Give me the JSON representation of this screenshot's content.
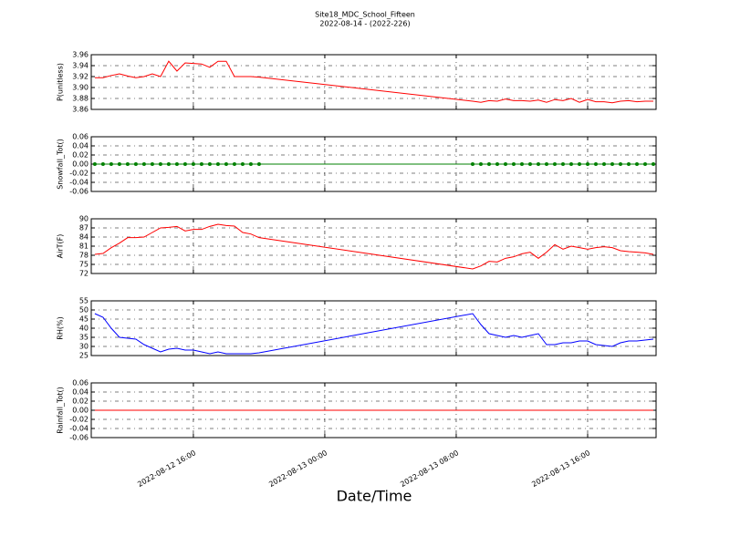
{
  "chart_data": [
    {
      "type": "line",
      "title": "Site18_MDC_School_Fifteen",
      "subtitle": "2022-08-14 - (2022-226)",
      "ylabel": "P(unitless)",
      "color": "#ff0000",
      "marker": false,
      "grid": true,
      "x": [
        "2022-08-12 10:00",
        "2022-08-12 10:30",
        "2022-08-12 11:00",
        "2022-08-12 11:30",
        "2022-08-12 12:00",
        "2022-08-12 12:30",
        "2022-08-12 13:00",
        "2022-08-12 13:30",
        "2022-08-12 14:00",
        "2022-08-12 14:30",
        "2022-08-12 15:00",
        "2022-08-12 15:30",
        "2022-08-12 16:00",
        "2022-08-12 16:30",
        "2022-08-12 17:00",
        "2022-08-12 17:30",
        "2022-08-12 18:00",
        "2022-08-12 18:30",
        "2022-08-12 19:00",
        "2022-08-12 19:30",
        "2022-08-12 20:00",
        "2022-08-13 09:00",
        "2022-08-13 09:30",
        "2022-08-13 10:00",
        "2022-08-13 10:30",
        "2022-08-13 11:00",
        "2022-08-13 11:30",
        "2022-08-13 12:00",
        "2022-08-13 12:30",
        "2022-08-13 13:00",
        "2022-08-13 13:30",
        "2022-08-13 14:00",
        "2022-08-13 14:30",
        "2022-08-13 15:00",
        "2022-08-13 15:30",
        "2022-08-13 16:00",
        "2022-08-13 16:30",
        "2022-08-13 17:00",
        "2022-08-13 17:30",
        "2022-08-13 18:00",
        "2022-08-13 18:30",
        "2022-08-13 19:00",
        "2022-08-13 19:30",
        "2022-08-13 20:00"
      ],
      "values": [
        3.918,
        3.918,
        3.922,
        3.925,
        3.921,
        3.918,
        3.92,
        3.925,
        3.92,
        3.948,
        3.93,
        3.945,
        3.944,
        3.943,
        3.937,
        3.948,
        3.948,
        3.92,
        3.92,
        3.92,
        3.919,
        3.875,
        3.873,
        3.876,
        3.875,
        3.879,
        3.876,
        3.876,
        3.875,
        3.877,
        3.873,
        3.878,
        3.876,
        3.88,
        3.873,
        3.878,
        3.874,
        3.874,
        3.872,
        3.875,
        3.876,
        3.874,
        3.875,
        3.875
      ],
      "xlim": [
        "2022-08-12 09:47",
        "2022-08-13 20:10"
      ],
      "xticks": [
        "2022-08-12 16:00",
        "2022-08-13 00:00",
        "2022-08-13 08:00",
        "2022-08-13 16:00"
      ],
      "ylim": [
        3.86,
        3.96
      ],
      "yticks": [
        3.86,
        3.88,
        {
          "value": 3.9,
          "label": "3.90"
        },
        3.92,
        3.94,
        3.96
      ]
    },
    {
      "type": "line",
      "ylabel": "Snowfall_Tot()",
      "color": "#008000",
      "marker": true,
      "grid": true,
      "x": [
        "2022-08-12 10:00",
        "2022-08-12 10:30",
        "2022-08-12 11:00",
        "2022-08-12 11:30",
        "2022-08-12 12:00",
        "2022-08-12 12:30",
        "2022-08-12 13:00",
        "2022-08-12 13:30",
        "2022-08-12 14:00",
        "2022-08-12 14:30",
        "2022-08-12 15:00",
        "2022-08-12 15:30",
        "2022-08-12 16:00",
        "2022-08-12 16:30",
        "2022-08-12 17:00",
        "2022-08-12 17:30",
        "2022-08-12 18:00",
        "2022-08-12 18:30",
        "2022-08-12 19:00",
        "2022-08-12 19:30",
        "2022-08-12 20:00",
        "2022-08-13 09:00",
        "2022-08-13 09:30",
        "2022-08-13 10:00",
        "2022-08-13 10:30",
        "2022-08-13 11:00",
        "2022-08-13 11:30",
        "2022-08-13 12:00",
        "2022-08-13 12:30",
        "2022-08-13 13:00",
        "2022-08-13 13:30",
        "2022-08-13 14:00",
        "2022-08-13 14:30",
        "2022-08-13 15:00",
        "2022-08-13 15:30",
        "2022-08-13 16:00",
        "2022-08-13 16:30",
        "2022-08-13 17:00",
        "2022-08-13 17:30",
        "2022-08-13 18:00",
        "2022-08-13 18:30",
        "2022-08-13 19:00",
        "2022-08-13 19:30",
        "2022-08-13 20:00"
      ],
      "values": [
        0,
        0,
        0,
        0,
        0,
        0,
        0,
        0,
        0,
        0,
        0,
        0,
        0,
        0,
        0,
        0,
        0,
        0,
        0,
        0,
        0,
        0,
        0,
        0,
        0,
        0,
        0,
        0,
        0,
        0,
        0,
        0,
        0,
        0,
        0,
        0,
        0,
        0,
        0,
        0,
        0,
        0,
        0,
        0
      ],
      "xlim": [
        "2022-08-12 09:47",
        "2022-08-13 20:10"
      ],
      "xticks": [
        "2022-08-12 16:00",
        "2022-08-13 00:00",
        "2022-08-13 08:00",
        "2022-08-13 16:00"
      ],
      "ylim": [
        -0.06,
        0.06
      ],
      "yticks": [
        -0.06,
        -0.04,
        -0.02,
        {
          "value": 0,
          "label": "0.00"
        },
        0.02,
        0.04,
        0.06
      ]
    },
    {
      "type": "line",
      "ylabel": "AirT(F)",
      "color": "#ff0000",
      "marker": false,
      "grid": true,
      "x": [
        "2022-08-12 10:00",
        "2022-08-12 10:30",
        "2022-08-12 11:00",
        "2022-08-12 11:30",
        "2022-08-12 12:00",
        "2022-08-12 12:30",
        "2022-08-12 13:00",
        "2022-08-12 13:30",
        "2022-08-12 14:00",
        "2022-08-12 14:30",
        "2022-08-12 15:00",
        "2022-08-12 15:30",
        "2022-08-12 16:00",
        "2022-08-12 16:30",
        "2022-08-12 17:00",
        "2022-08-12 17:30",
        "2022-08-12 18:00",
        "2022-08-12 18:30",
        "2022-08-12 19:00",
        "2022-08-12 19:30",
        "2022-08-12 20:00",
        "2022-08-13 09:00",
        "2022-08-13 09:30",
        "2022-08-13 10:00",
        "2022-08-13 10:30",
        "2022-08-13 11:00",
        "2022-08-13 11:30",
        "2022-08-13 12:00",
        "2022-08-13 12:30",
        "2022-08-13 13:00",
        "2022-08-13 13:30",
        "2022-08-13 14:00",
        "2022-08-13 14:30",
        "2022-08-13 15:00",
        "2022-08-13 15:30",
        "2022-08-13 16:00",
        "2022-08-13 16:30",
        "2022-08-13 17:00",
        "2022-08-13 17:30",
        "2022-08-13 18:00",
        "2022-08-13 18:30",
        "2022-08-13 19:00",
        "2022-08-13 19:30",
        "2022-08-13 20:00"
      ],
      "values": [
        78.3,
        78.6,
        80.5,
        82,
        83.8,
        83.8,
        84,
        85.5,
        87,
        87.2,
        87.5,
        86,
        86.5,
        86.5,
        87.5,
        88.2,
        87.8,
        87.6,
        85.5,
        85,
        83.8,
        73.5,
        74.5,
        76,
        75.8,
        77,
        77.5,
        78.5,
        79,
        77,
        79,
        81.5,
        80,
        81,
        80.5,
        80,
        80.5,
        80.8,
        80.5,
        79.5,
        79.2,
        79,
        78.8,
        78.3
      ],
      "xlim": [
        "2022-08-12 09:47",
        "2022-08-13 20:10"
      ],
      "xticks": [
        "2022-08-12 16:00",
        "2022-08-13 00:00",
        "2022-08-13 08:00",
        "2022-08-13 16:00"
      ],
      "ylim": [
        72,
        90
      ],
      "yticks": [
        72,
        75,
        78,
        81,
        84,
        87,
        90
      ]
    },
    {
      "type": "line",
      "ylabel": "RH(%)",
      "color": "#0000ff",
      "marker": false,
      "grid": true,
      "x": [
        "2022-08-12 10:00",
        "2022-08-12 10:30",
        "2022-08-12 11:00",
        "2022-08-12 11:30",
        "2022-08-12 12:00",
        "2022-08-12 12:30",
        "2022-08-12 13:00",
        "2022-08-12 13:30",
        "2022-08-12 14:00",
        "2022-08-12 14:30",
        "2022-08-12 15:00",
        "2022-08-12 15:30",
        "2022-08-12 16:00",
        "2022-08-12 16:30",
        "2022-08-12 17:00",
        "2022-08-12 17:30",
        "2022-08-12 18:00",
        "2022-08-12 18:30",
        "2022-08-12 19:00",
        "2022-08-12 19:30",
        "2022-08-12 20:00",
        "2022-08-13 09:00",
        "2022-08-13 09:30",
        "2022-08-13 10:00",
        "2022-08-13 10:30",
        "2022-08-13 11:00",
        "2022-08-13 11:30",
        "2022-08-13 12:00",
        "2022-08-13 12:30",
        "2022-08-13 13:00",
        "2022-08-13 13:30",
        "2022-08-13 14:00",
        "2022-08-13 14:30",
        "2022-08-13 15:00",
        "2022-08-13 15:30",
        "2022-08-13 16:00",
        "2022-08-13 16:30",
        "2022-08-13 17:00",
        "2022-08-13 17:30",
        "2022-08-13 18:00",
        "2022-08-13 18:30",
        "2022-08-13 19:00",
        "2022-08-13 19:30",
        "2022-08-13 20:00"
      ],
      "values": [
        48,
        46,
        40,
        35,
        34.5,
        34,
        31,
        29,
        27,
        28.5,
        29,
        28,
        28,
        27,
        26,
        27,
        26,
        26,
        26,
        26,
        26.5,
        48,
        42,
        37,
        36,
        35,
        36,
        35,
        36,
        37,
        31,
        31,
        32,
        32,
        33,
        33,
        31,
        30.5,
        30,
        32,
        33,
        33,
        33.5,
        34
      ],
      "xlim": [
        "2022-08-12 09:47",
        "2022-08-13 20:10"
      ],
      "xticks": [
        "2022-08-12 16:00",
        "2022-08-13 00:00",
        "2022-08-13 08:00",
        "2022-08-13 16:00"
      ],
      "ylim": [
        25,
        55
      ],
      "yticks": [
        25,
        30,
        35,
        40,
        45,
        50,
        55
      ]
    },
    {
      "type": "line",
      "ylabel": "Rainfall_Tot()",
      "xlabel": "Date/Time",
      "color": "#ff0000",
      "marker": false,
      "grid": true,
      "xtick_labels": true,
      "x": [
        "2022-08-12 10:00",
        "2022-08-12 10:30",
        "2022-08-12 11:00",
        "2022-08-12 11:30",
        "2022-08-12 12:00",
        "2022-08-12 12:30",
        "2022-08-12 13:00",
        "2022-08-12 13:30",
        "2022-08-12 14:00",
        "2022-08-12 14:30",
        "2022-08-12 15:00",
        "2022-08-12 15:30",
        "2022-08-12 16:00",
        "2022-08-12 16:30",
        "2022-08-12 17:00",
        "2022-08-12 17:30",
        "2022-08-12 18:00",
        "2022-08-12 18:30",
        "2022-08-12 19:00",
        "2022-08-12 19:30",
        "2022-08-12 20:00",
        "2022-08-13 09:00",
        "2022-08-13 09:30",
        "2022-08-13 10:00",
        "2022-08-13 10:30",
        "2022-08-13 11:00",
        "2022-08-13 11:30",
        "2022-08-13 12:00",
        "2022-08-13 12:30",
        "2022-08-13 13:00",
        "2022-08-13 13:30",
        "2022-08-13 14:00",
        "2022-08-13 14:30",
        "2022-08-13 15:00",
        "2022-08-13 15:30",
        "2022-08-13 16:00",
        "2022-08-13 16:30",
        "2022-08-13 17:00",
        "2022-08-13 17:30",
        "2022-08-13 18:00",
        "2022-08-13 18:30",
        "2022-08-13 19:00",
        "2022-08-13 19:30",
        "2022-08-13 20:00"
      ],
      "values": [
        0,
        0,
        0,
        0,
        0,
        0,
        0,
        0,
        0,
        0,
        0,
        0,
        0,
        0,
        0,
        0,
        0,
        0,
        0,
        0,
        0,
        0,
        0,
        0,
        0,
        0,
        0,
        0,
        0,
        0,
        0,
        0,
        0,
        0,
        0,
        0,
        0,
        0,
        0,
        0,
        0,
        0,
        0,
        0
      ],
      "xlim": [
        "2022-08-12 09:47",
        "2022-08-13 20:10"
      ],
      "xticks": [
        "2022-08-12 16:00",
        "2022-08-13 00:00",
        "2022-08-13 08:00",
        "2022-08-13 16:00"
      ],
      "ylim": [
        -0.06,
        0.06
      ],
      "yticks": [
        -0.06,
        -0.04,
        -0.02,
        {
          "value": 0,
          "label": "0.00"
        },
        0.02,
        0.04,
        0.06
      ]
    }
  ]
}
